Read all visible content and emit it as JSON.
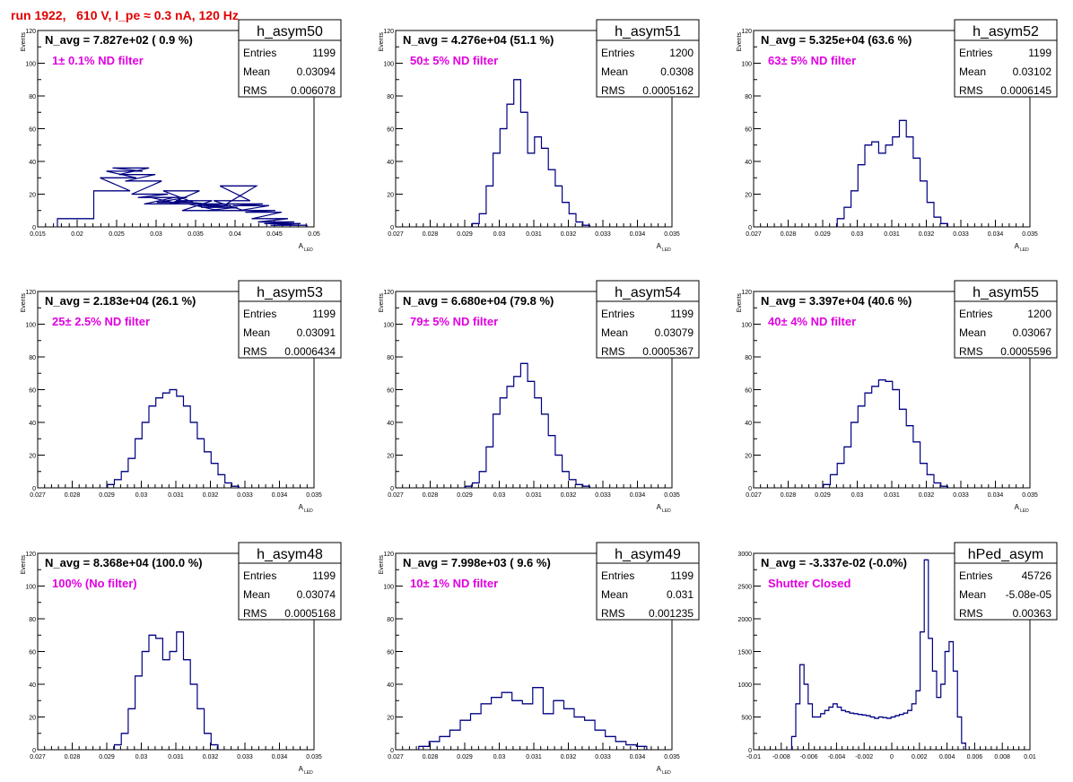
{
  "page_title": "run 1922,   610 V, I_pe ≈ 0.3 nA, 120 Hz",
  "colors": {
    "histogram": "#000080",
    "title": "#e00000",
    "label": "#e000e0",
    "axes": "#000000"
  },
  "chart_data": [
    {
      "type": "histogram",
      "name": "h_asym50",
      "navg": "N_avg = 7.827e+02 ( 0.9 %)",
      "filter": "1± 0.1% ND filter",
      "stats": {
        "entries": "1199",
        "mean": "0.03094",
        "rms": "0.006078"
      },
      "ylabel": "Events",
      "xlabel": "A",
      "xlabel_sub": "LED",
      "xlim": [
        0.015,
        0.05
      ],
      "ylim": [
        0,
        120
      ],
      "xticks": [
        "0.015",
        "0.02",
        "0.025",
        "0.03",
        "0.035",
        "0.04",
        "0.045",
        "0.05"
      ],
      "yticks": [
        "0",
        "20",
        "40",
        "60",
        "80",
        "100",
        "120"
      ],
      "x": [
        0.0198,
        0.0244,
        0.0252,
        0.026,
        0.0268,
        0.0276,
        0.0284,
        0.0292,
        0.03,
        0.0308,
        0.0316,
        0.0324,
        0.0332,
        0.034,
        0.0348,
        0.0356,
        0.0364,
        0.0372,
        0.038,
        0.0388,
        0.0396,
        0.0404,
        0.0412,
        0.042,
        0.0428,
        0.0436,
        0.0444,
        0.0452,
        0.046,
        0.0468
      ],
      "y": [
        5,
        22,
        30,
        34,
        36,
        32,
        28,
        20,
        18,
        14,
        18,
        15,
        22,
        14,
        16,
        10,
        14,
        13,
        12,
        10,
        16,
        25,
        14,
        13,
        10,
        9,
        5,
        3,
        2,
        1
      ]
    },
    {
      "type": "histogram",
      "name": "h_asym51",
      "navg": "N_avg = 4.276e+04 (51.1 %)",
      "filter": "50± 5% ND filter",
      "stats": {
        "entries": "1200",
        "mean": "0.0308",
        "rms": "0.0005162"
      },
      "ylabel": "Events",
      "xlabel": "A",
      "xlabel_sub": "LED",
      "xlim": [
        0.027,
        0.035
      ],
      "ylim": [
        0,
        120
      ],
      "xticks": [
        "0.027",
        "0.028",
        "0.029",
        "0.03",
        "0.031",
        "0.032",
        "0.033",
        "0.034",
        "0.035"
      ],
      "yticks": [
        "0",
        "20",
        "40",
        "60",
        "80",
        "100",
        "120"
      ],
      "x": [
        0.02932,
        0.02952,
        0.02972,
        0.02992,
        0.03012,
        0.03032,
        0.03052,
        0.03072,
        0.03092,
        0.03112,
        0.03132,
        0.03152,
        0.03172,
        0.03192,
        0.03212,
        0.03232,
        0.03252
      ],
      "y": [
        2,
        8,
        25,
        45,
        60,
        75,
        90,
        70,
        45,
        55,
        48,
        35,
        25,
        15,
        8,
        3,
        1
      ]
    },
    {
      "type": "histogram",
      "name": "h_asym52",
      "navg": "N_avg = 5.325e+04 (63.6 %)",
      "filter": "63± 5% ND filter",
      "stats": {
        "entries": "1199",
        "mean": "0.03102",
        "rms": "0.0006145"
      },
      "ylabel": "Events",
      "xlabel": "A",
      "xlabel_sub": "LED",
      "xlim": [
        0.027,
        0.035
      ],
      "ylim": [
        0,
        120
      ],
      "xticks": [
        "0.027",
        "0.028",
        "0.029",
        "0.03",
        "0.031",
        "0.032",
        "0.033",
        "0.034",
        "0.035"
      ],
      "yticks": [
        "0",
        "20",
        "40",
        "60",
        "80",
        "100",
        "120"
      ],
      "x": [
        0.02952,
        0.02972,
        0.02992,
        0.03012,
        0.03032,
        0.03052,
        0.03072,
        0.03092,
        0.03112,
        0.03132,
        0.03152,
        0.03172,
        0.03192,
        0.03212,
        0.03232,
        0.03252
      ],
      "y": [
        5,
        12,
        22,
        38,
        50,
        52,
        45,
        50,
        55,
        65,
        55,
        42,
        28,
        15,
        6,
        2
      ]
    },
    {
      "type": "histogram",
      "name": "h_asym53",
      "navg": "N_avg = 2.183e+04 (26.1 %)",
      "filter": "25± 2.5% ND filter",
      "stats": {
        "entries": "1199",
        "mean": "0.03091",
        "rms": "0.0006434"
      },
      "ylabel": "Events",
      "xlabel": "A",
      "xlabel_sub": "LED",
      "xlim": [
        0.027,
        0.035
      ],
      "ylim": [
        0,
        120
      ],
      "xticks": [
        "0.027",
        "0.028",
        "0.029",
        "0.03",
        "0.031",
        "0.032",
        "0.033",
        "0.034",
        "0.035"
      ],
      "yticks": [
        "0",
        "20",
        "40",
        "60",
        "80",
        "100",
        "120"
      ],
      "x": [
        0.02912,
        0.02932,
        0.02952,
        0.02972,
        0.02992,
        0.03012,
        0.03032,
        0.03052,
        0.03072,
        0.03092,
        0.03112,
        0.03132,
        0.03152,
        0.03172,
        0.03192,
        0.03212,
        0.03232,
        0.03252,
        0.03272
      ],
      "y": [
        2,
        5,
        10,
        18,
        30,
        40,
        50,
        55,
        58,
        60,
        56,
        50,
        40,
        30,
        22,
        15,
        8,
        3,
        1
      ]
    },
    {
      "type": "histogram",
      "name": "h_asym54",
      "navg": "N_avg = 6.680e+04 (79.8 %)",
      "filter": "79± 5% ND filter",
      "stats": {
        "entries": "1199",
        "mean": "0.03079",
        "rms": "0.0005367"
      },
      "ylabel": "Events",
      "xlabel": "A",
      "xlabel_sub": "LED",
      "xlim": [
        0.027,
        0.035
      ],
      "ylim": [
        0,
        120
      ],
      "xticks": [
        "0.027",
        "0.028",
        "0.029",
        "0.03",
        "0.031",
        "0.032",
        "0.033",
        "0.034",
        "0.035"
      ],
      "yticks": [
        "0",
        "20",
        "40",
        "60",
        "80",
        "100",
        "120"
      ],
      "x": [
        0.02912,
        0.02932,
        0.02952,
        0.02972,
        0.02992,
        0.03012,
        0.03032,
        0.03052,
        0.03072,
        0.03092,
        0.03112,
        0.03132,
        0.03152,
        0.03172,
        0.03192,
        0.03212,
        0.03232,
        0.03252
      ],
      "y": [
        1,
        3,
        10,
        25,
        45,
        55,
        62,
        68,
        76,
        65,
        55,
        45,
        32,
        20,
        10,
        5,
        2,
        1
      ]
    },
    {
      "type": "histogram",
      "name": "h_asym55",
      "navg": "N_avg = 3.397e+04 (40.6 %)",
      "filter": "40± 4% ND filter",
      "stats": {
        "entries": "1200",
        "mean": "0.03067",
        "rms": "0.0005596"
      },
      "ylabel": "Events",
      "xlabel": "A",
      "xlabel_sub": "LED",
      "xlim": [
        0.027,
        0.035
      ],
      "ylim": [
        0,
        120
      ],
      "xticks": [
        "0.027",
        "0.028",
        "0.029",
        "0.03",
        "0.031",
        "0.032",
        "0.033",
        "0.034",
        "0.035"
      ],
      "yticks": [
        "0",
        "20",
        "40",
        "60",
        "80",
        "100",
        "120"
      ],
      "x": [
        0.02912,
        0.02932,
        0.02952,
        0.02972,
        0.02992,
        0.03012,
        0.03032,
        0.03052,
        0.03072,
        0.03092,
        0.03112,
        0.03132,
        0.03152,
        0.03172,
        0.03192,
        0.03212,
        0.03232,
        0.03252
      ],
      "y": [
        2,
        8,
        15,
        25,
        40,
        50,
        58,
        62,
        66,
        65,
        60,
        48,
        38,
        28,
        15,
        8,
        3,
        1
      ]
    },
    {
      "type": "histogram",
      "name": "h_asym48",
      "navg": "N_avg = 8.368e+04 (100.0 %)",
      "filter": "100% (No filter)",
      "stats": {
        "entries": "1199",
        "mean": "0.03074",
        "rms": "0.0005168"
      },
      "ylabel": "Events",
      "xlabel": "A",
      "xlabel_sub": "LED",
      "xlim": [
        0.027,
        0.035
      ],
      "ylim": [
        0,
        120
      ],
      "xticks": [
        "0.027",
        "0.028",
        "0.029",
        "0.03",
        "0.031",
        "0.032",
        "0.033",
        "0.034",
        "0.035"
      ],
      "yticks": [
        "0",
        "20",
        "40",
        "60",
        "80",
        "100",
        "120"
      ],
      "x": [
        0.02932,
        0.02952,
        0.02972,
        0.02992,
        0.03012,
        0.03032,
        0.03052,
        0.03072,
        0.03092,
        0.03112,
        0.03132,
        0.03152,
        0.03172,
        0.03192,
        0.03212
      ],
      "y": [
        3,
        10,
        25,
        45,
        60,
        70,
        68,
        55,
        60,
        72,
        55,
        40,
        25,
        10,
        3
      ]
    },
    {
      "type": "histogram",
      "name": "h_asym49",
      "navg": "N_avg = 7.998e+03 ( 9.6 %)",
      "filter": "10± 1% ND filter",
      "stats": {
        "entries": "1199",
        "mean": "0.031",
        "rms": "0.001235"
      },
      "ylabel": "Events",
      "xlabel": "A",
      "xlabel_sub": "LED",
      "xlim": [
        0.027,
        0.035
      ],
      "ylim": [
        0,
        120
      ],
      "xticks": [
        "0.027",
        "0.028",
        "0.029",
        "0.03",
        "0.031",
        "0.032",
        "0.033",
        "0.034",
        "0.035"
      ],
      "yticks": [
        "0",
        "20",
        "40",
        "60",
        "80",
        "100",
        "120"
      ],
      "x": [
        0.02782,
        0.02812,
        0.02842,
        0.02872,
        0.02902,
        0.02932,
        0.02962,
        0.02992,
        0.03022,
        0.03052,
        0.03082,
        0.03112,
        0.03142,
        0.03172,
        0.03202,
        0.03232,
        0.03262,
        0.03292,
        0.03322,
        0.03352,
        0.03382,
        0.03412
      ],
      "y": [
        2,
        5,
        8,
        12,
        18,
        22,
        28,
        32,
        35,
        30,
        28,
        38,
        22,
        30,
        25,
        20,
        18,
        12,
        8,
        5,
        3,
        2
      ]
    },
    {
      "type": "histogram",
      "name": "hPed_asym",
      "navg": "N_avg = -3.337e-02 (-0.0%)",
      "filter": "Shutter Closed",
      "stats": {
        "entries": "45726",
        "mean": "-5.08e-05",
        "rms": "0.00363"
      },
      "ylabel": "",
      "xlabel": "",
      "xlabel_sub": "",
      "xlim": [
        -0.01,
        0.01
      ],
      "ylim": [
        0,
        3000
      ],
      "xticks": [
        "-0.01",
        "-0.008",
        "-0.006",
        "-0.004",
        "-0.002",
        "0",
        "0.002",
        "0.004",
        "0.006",
        "0.008",
        "0.01"
      ],
      "yticks": [
        "0",
        "500",
        "1000",
        "1500",
        "2000",
        "2500",
        "3000"
      ],
      "x": [
        -0.0071,
        -0.0068,
        -0.0065,
        -0.0062,
        -0.0059,
        -0.0056,
        -0.0053,
        -0.005,
        -0.0047,
        -0.0044,
        -0.0041,
        -0.0038,
        -0.0035,
        -0.0032,
        -0.0029,
        -0.0026,
        -0.0023,
        -0.002,
        -0.0017,
        -0.0014,
        -0.0011,
        -0.0008,
        -0.0005,
        -0.0002,
        0.0001,
        0.0004,
        0.0007,
        0.001,
        0.0013,
        0.0016,
        0.0019,
        0.0022,
        0.0025,
        0.0028,
        0.0031,
        0.0034,
        0.0037,
        0.004,
        0.0043,
        0.0046,
        0.0049,
        0.0052
      ],
      "y": [
        200,
        700,
        1300,
        1000,
        700,
        500,
        500,
        550,
        600,
        650,
        700,
        650,
        600,
        580,
        560,
        550,
        540,
        530,
        520,
        500,
        480,
        500,
        490,
        480,
        500,
        520,
        540,
        560,
        600,
        700,
        900,
        1800,
        2900,
        1700,
        1200,
        800,
        1000,
        1500,
        1650,
        1200,
        500,
        100
      ]
    }
  ]
}
